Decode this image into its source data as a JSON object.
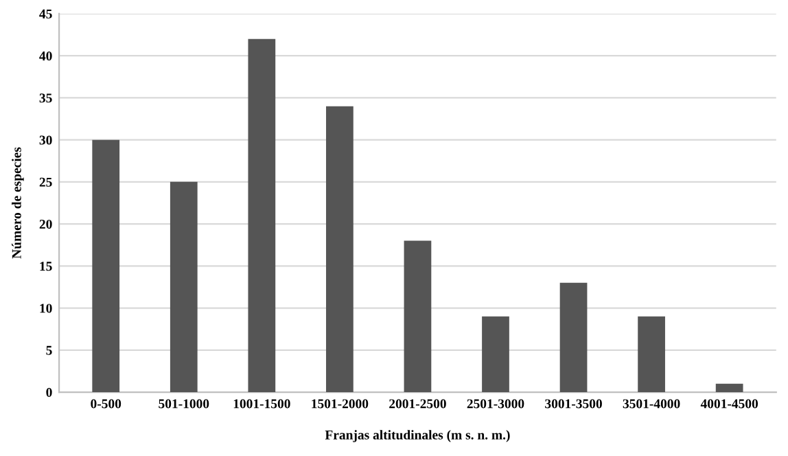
{
  "chart_data": {
    "type": "bar",
    "xlabel": "Franjas altitudinales (m s. n. m.)",
    "ylabel": "Número de especies",
    "categories": [
      "0-500",
      "501-1000",
      "1001-1500",
      "1501-2000",
      "2001-2500",
      "2501-3000",
      "3001-3500",
      "3501-4000",
      "4001-4500"
    ],
    "values": [
      30,
      25,
      42,
      34,
      18,
      9,
      13,
      9,
      1
    ],
    "color": "#555555",
    "ylim": [
      0,
      45
    ],
    "yticks": [
      0,
      5,
      10,
      15,
      20,
      25,
      30,
      35,
      40,
      45
    ],
    "grid": "y",
    "legend": false
  }
}
